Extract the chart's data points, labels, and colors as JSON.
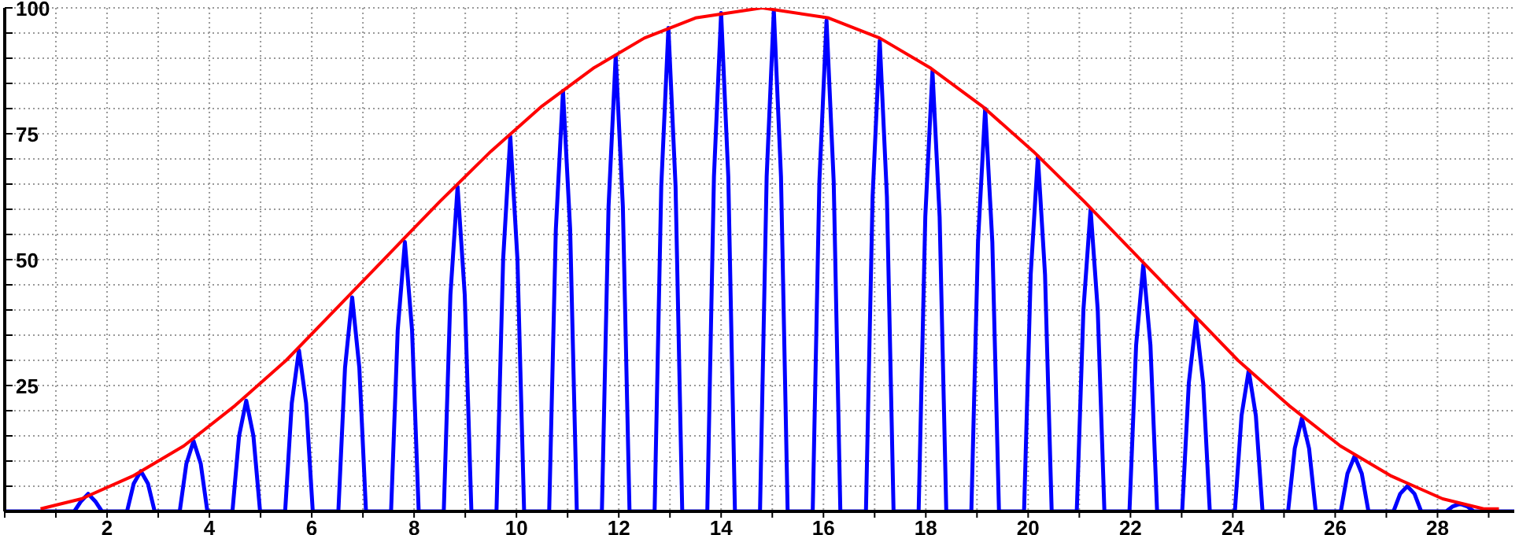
{
  "chart_data": {
    "type": "line",
    "xlim": [
      0,
      29.5
    ],
    "ylim": [
      0,
      100
    ],
    "xticks": [
      {
        "value": 0,
        "label": null
      },
      {
        "value": 1,
        "label": null
      },
      2,
      {
        "value": 3,
        "label": null
      },
      4,
      {
        "value": 5,
        "label": null
      },
      6,
      {
        "value": 7,
        "label": null
      },
      8,
      {
        "value": 9,
        "label": null
      },
      10,
      {
        "value": 11,
        "label": null
      },
      12,
      {
        "value": 13,
        "label": null
      },
      14,
      {
        "value": 15,
        "label": null
      },
      16,
      {
        "value": 17,
        "label": null
      },
      18,
      {
        "value": 19,
        "label": null
      },
      20,
      {
        "value": 21,
        "label": null
      },
      22,
      {
        "value": 23,
        "label": null
      },
      24,
      {
        "value": 25,
        "label": null
      },
      26,
      {
        "value": 27,
        "label": null
      },
      28,
      {
        "value": 29,
        "label": null
      }
    ],
    "yticks": [
      {
        "value": 0,
        "label": null
      },
      {
        "value": 5,
        "label": null
      },
      {
        "value": 10,
        "label": null
      },
      {
        "value": 15,
        "label": null
      },
      {
        "value": 20,
        "label": null
      },
      25,
      {
        "value": 30,
        "label": null
      },
      {
        "value": 35,
        "label": null
      },
      {
        "value": 40,
        "label": null
      },
      {
        "value": 45,
        "label": null
      },
      50,
      {
        "value": 55,
        "label": null
      },
      {
        "value": 60,
        "label": null
      },
      {
        "value": 65,
        "label": null
      },
      {
        "value": 70,
        "label": null
      },
      75,
      {
        "value": 80,
        "label": null
      },
      {
        "value": 85,
        "label": null
      },
      {
        "value": 90,
        "label": null
      },
      {
        "value": 95,
        "label": null
      },
      100
    ],
    "grid": true,
    "series": [
      {
        "color": "#0000ff",
        "x": [
          0,
          1.36,
          1.49,
          1.63,
          1.77,
          1.9,
          2.39,
          2.52,
          2.66,
          2.8,
          2.93,
          3.42,
          3.55,
          3.69,
          3.83,
          3.96,
          4.45,
          4.58,
          4.72,
          4.86,
          4.99,
          5.48,
          5.61,
          5.75,
          5.89,
          6.02,
          6.52,
          6.65,
          6.79,
          6.93,
          7.06,
          7.55,
          7.68,
          7.82,
          7.96,
          8.09,
          8.58,
          8.71,
          8.85,
          8.99,
          9.12,
          9.61,
          9.74,
          9.88,
          10.02,
          10.15,
          10.64,
          10.77,
          10.91,
          11.05,
          11.18,
          11.67,
          11.8,
          11.94,
          12.08,
          12.21,
          12.7,
          12.83,
          12.97,
          13.11,
          13.24,
          13.73,
          13.86,
          14,
          14.14,
          14.27,
          14.76,
          14.89,
          15.03,
          15.17,
          15.3,
          15.79,
          15.92,
          16.06,
          16.2,
          16.33,
          16.83,
          16.96,
          17.1,
          17.24,
          17.37,
          17.86,
          17.99,
          18.13,
          18.27,
          18.4,
          18.89,
          19.02,
          19.16,
          19.3,
          19.43,
          19.92,
          20.05,
          20.19,
          20.33,
          20.46,
          20.95,
          21.08,
          21.22,
          21.36,
          21.49,
          21.98,
          22.11,
          22.25,
          22.39,
          22.52,
          23.01,
          23.14,
          23.28,
          23.42,
          23.55,
          24.04,
          24.17,
          24.31,
          24.45,
          24.58,
          25.08,
          25.21,
          25.35,
          25.49,
          25.62,
          26.11,
          26.24,
          26.38,
          26.52,
          26.65,
          27.14,
          27.27,
          27.41,
          27.55,
          27.68,
          28.17,
          28.3,
          28.44,
          28.58,
          28.71,
          29.5
        ],
        "values": [
          0,
          0,
          2,
          3.5,
          2,
          0,
          0,
          5.5,
          8,
          5.5,
          0,
          0,
          9.5,
          14,
          9.5,
          0,
          0,
          15,
          22,
          15,
          0,
          0,
          21.5,
          32,
          21.5,
          0,
          0,
          28.5,
          42.5,
          28.5,
          0,
          0,
          36,
          53.5,
          36,
          0,
          0,
          43,
          64.5,
          43,
          0,
          0,
          50,
          74.5,
          50,
          0,
          0,
          56,
          83.5,
          56,
          0,
          0,
          60.5,
          90.5,
          60.5,
          0,
          0,
          64.5,
          96,
          64.5,
          0,
          0,
          66.5,
          99,
          66.5,
          0,
          0,
          66.5,
          99.5,
          66.5,
          0,
          0,
          65.5,
          97.5,
          65.5,
          0,
          0,
          62.5,
          93.5,
          62.5,
          0,
          0,
          58.5,
          87.5,
          58.5,
          0,
          0,
          53.5,
          80,
          53.5,
          0,
          0,
          47,
          70.5,
          47,
          0,
          0,
          40,
          60,
          40,
          0,
          0,
          33,
          49,
          33,
          0,
          0,
          25.5,
          38,
          25.5,
          0,
          0,
          19,
          28,
          19,
          0,
          0,
          12.5,
          18.5,
          12.5,
          0,
          0,
          7.5,
          11,
          7.5,
          0,
          0,
          3.5,
          5,
          3.5,
          0,
          0,
          1,
          1.5,
          1,
          0,
          0
        ]
      },
      {
        "color": "#ff0000",
        "x": [
          0.7,
          1.5,
          2.5,
          3.5,
          4.5,
          5.5,
          6.5,
          7.5,
          8.5,
          9.5,
          10.5,
          11.5,
          12.5,
          13.5,
          14.8,
          16.1,
          17.1,
          18.1,
          19.1,
          20.1,
          21.1,
          22.1,
          23.1,
          24.1,
          25.1,
          26.1,
          27.1,
          28.1,
          28.9,
          29.2
        ],
        "values": [
          0.5,
          2.5,
          7,
          13,
          21,
          30,
          40.5,
          51,
          61.5,
          71.5,
          80.5,
          88,
          94,
          98,
          100,
          98,
          94,
          88,
          80.5,
          71.5,
          61.5,
          51,
          40.5,
          30,
          21,
          13,
          7,
          2.5,
          0.5,
          0.5
        ]
      }
    ]
  }
}
